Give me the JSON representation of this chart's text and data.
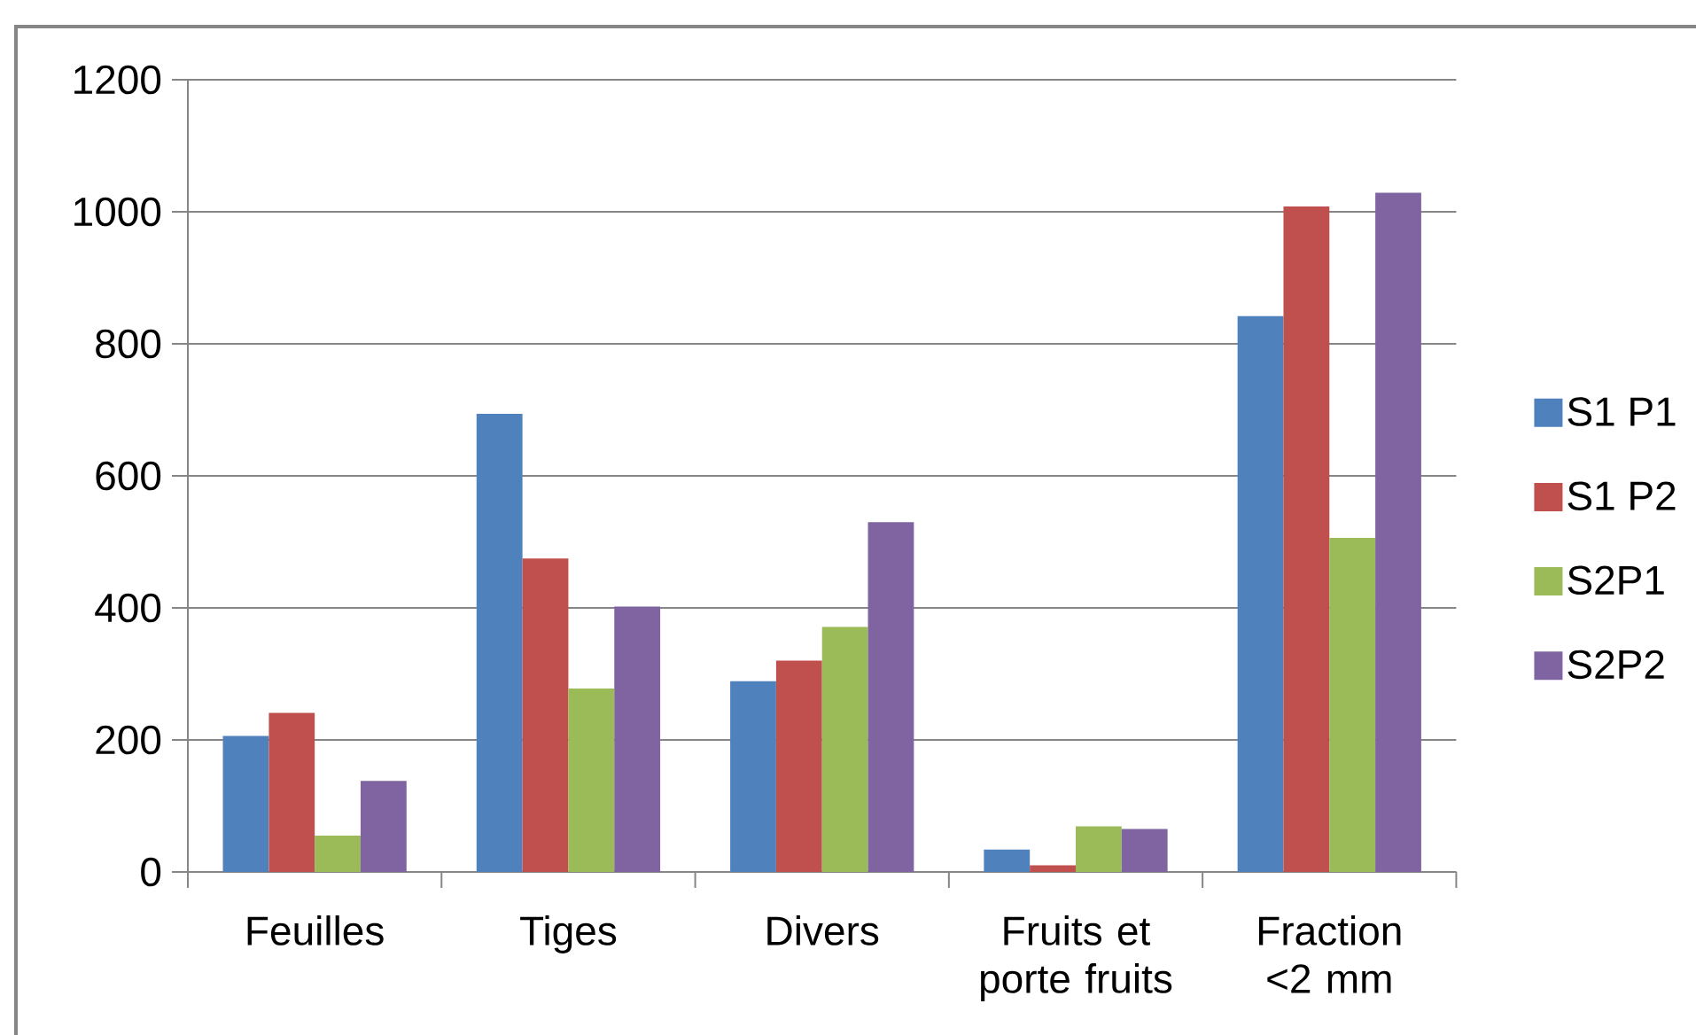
{
  "chart_data": {
    "type": "bar",
    "categories": [
      "Feuilles",
      "Tiges",
      "Divers",
      "Fruits et porte fruits",
      "Fraction <2 mm"
    ],
    "series": [
      {
        "name": "S1 P1",
        "color": "#4f81bd",
        "values": [
          206,
          694,
          289,
          34,
          842
        ]
      },
      {
        "name": "S1 P2",
        "color": "#c0504d",
        "values": [
          241,
          475,
          320,
          10,
          1008
        ]
      },
      {
        "name": "S2P1",
        "color": "#9bbb59",
        "values": [
          55,
          278,
          371,
          69,
          506
        ]
      },
      {
        "name": "S2P2",
        "color": "#8064a2",
        "values": [
          138,
          402,
          530,
          65,
          1029
        ]
      }
    ],
    "ylim": [
      0,
      1200
    ],
    "yticks": [
      0,
      200,
      400,
      600,
      800,
      1000,
      1200
    ],
    "grid": "y",
    "legend": "right"
  }
}
